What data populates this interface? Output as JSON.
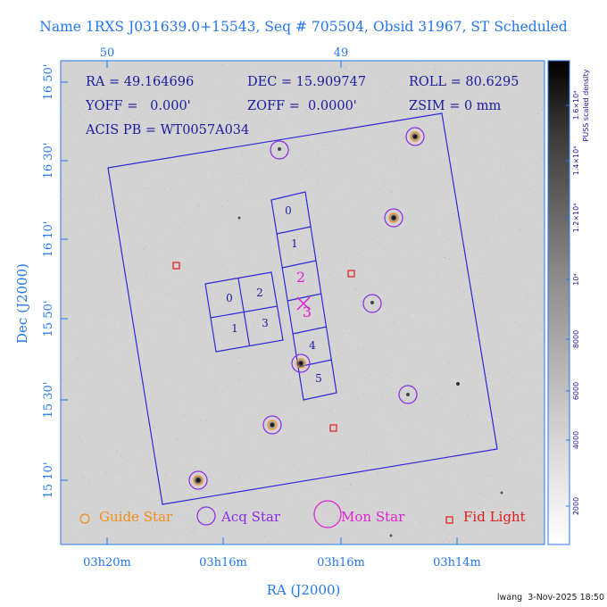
{
  "header": {
    "title": "Name 1RXS J031639.0+15543, Seq # 705504, Obsid 31967, ST Scheduled"
  },
  "info": {
    "ra": "RA = 49.164696",
    "dec": "DEC = 15.909747",
    "roll": "ROLL = 80.6295",
    "yoff": "YOFF =   0.000'",
    "zoff": "ZOFF =  0.0000'",
    "zsim": "ZSIM = 0 mm",
    "acis": "ACIS PB = WT0057A034"
  },
  "axes": {
    "top_ticks": [
      "50",
      "49"
    ],
    "left_ticks": [
      "16 50'",
      "16 30'",
      "16 10'",
      "15 50'",
      "15 30'",
      "15 10'"
    ],
    "bottom_ticks": [
      "03h20m",
      "03h16m",
      "03h16m",
      "03h14m"
    ],
    "xlabel": "RA (J2000)",
    "ylabel": "Dec (J2000)"
  },
  "colorbar": {
    "label": "PUSS scaled density",
    "ticks": [
      "2000",
      "4000",
      "6000",
      "8000",
      "10⁴",
      "1.2×10⁴",
      "1.4×10⁴",
      "1.6×10⁴"
    ]
  },
  "chips": {
    "i_array": [
      "0",
      "2",
      "1",
      "3"
    ],
    "s_array": [
      "0",
      "1",
      "2",
      "3",
      "4",
      "5"
    ]
  },
  "legend": {
    "guide": "Guide Star",
    "acq": "Acq Star",
    "mon": "Mon Star",
    "fid": "Fid Light"
  },
  "footer": {
    "stamp": "lwang  3-Nov-2025 18:50"
  },
  "colors": {
    "axis_blue": "#2277ee",
    "frame_blue": "#2a2ad8",
    "text_navy": "#1a1aa0",
    "acq_purple": "#8a2be2",
    "fid_red": "#e01a1a",
    "mon_magenta": "#e21fd0",
    "guide_orange": "#f08c1a"
  }
}
